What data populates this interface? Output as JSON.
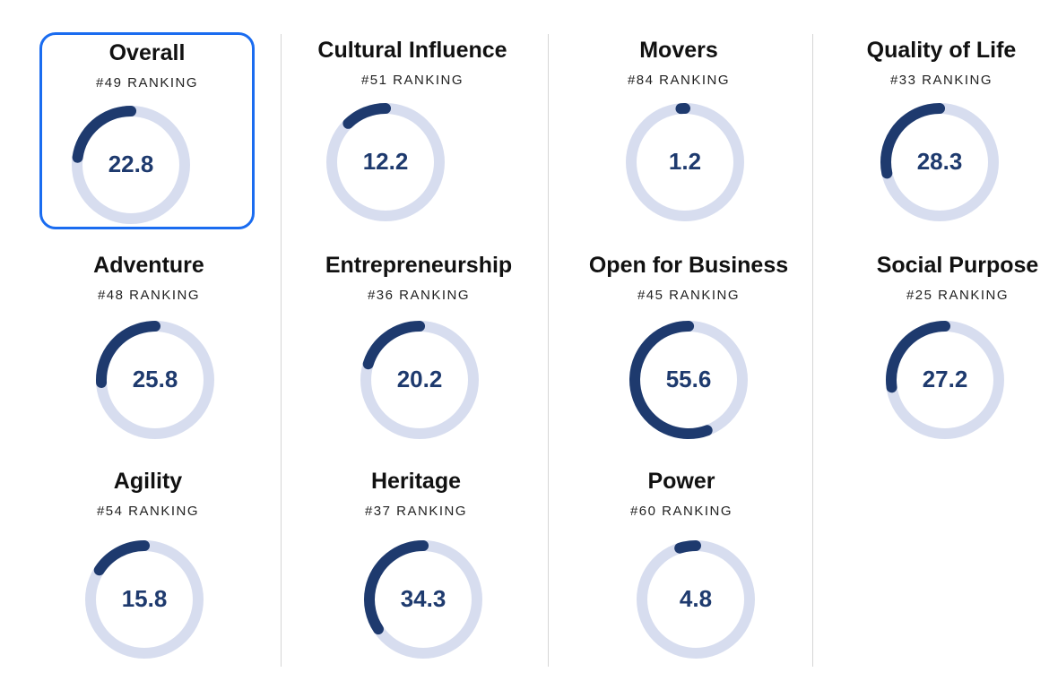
{
  "colors": {
    "arc": "#1e3a6e",
    "track": "#d7ddef",
    "selected_border": "#1a6cf0",
    "value_text": "#1e3a6e"
  },
  "scores": [
    {
      "title": "Overall",
      "ranking": "#49 RANKING",
      "value": "22.8",
      "selected": true
    },
    {
      "title": "Cultural Influence",
      "ranking": "#51 RANKING",
      "value": "12.2",
      "selected": false
    },
    {
      "title": "Movers",
      "ranking": "#84 RANKING",
      "value": "1.2",
      "selected": false
    },
    {
      "title": "Quality of Life",
      "ranking": "#33 RANKING",
      "value": "28.3",
      "selected": false
    },
    {
      "title": "Adventure",
      "ranking": "#48 RANKING",
      "value": "25.8",
      "selected": false
    },
    {
      "title": "Entrepreneurship",
      "ranking": "#36 RANKING",
      "value": "20.2",
      "selected": false
    },
    {
      "title": "Open for Business",
      "ranking": "#45 RANKING",
      "value": "55.6",
      "selected": false
    },
    {
      "title": "Social Purpose",
      "ranking": "#25 RANKING",
      "value": "27.2",
      "selected": false
    },
    {
      "title": "Agility",
      "ranking": "#54 RANKING",
      "value": "15.8",
      "selected": false
    },
    {
      "title": "Heritage",
      "ranking": "#37 RANKING",
      "value": "34.3",
      "selected": false
    },
    {
      "title": "Power",
      "ranking": "#60 RANKING",
      "value": "4.8",
      "selected": false
    }
  ]
}
